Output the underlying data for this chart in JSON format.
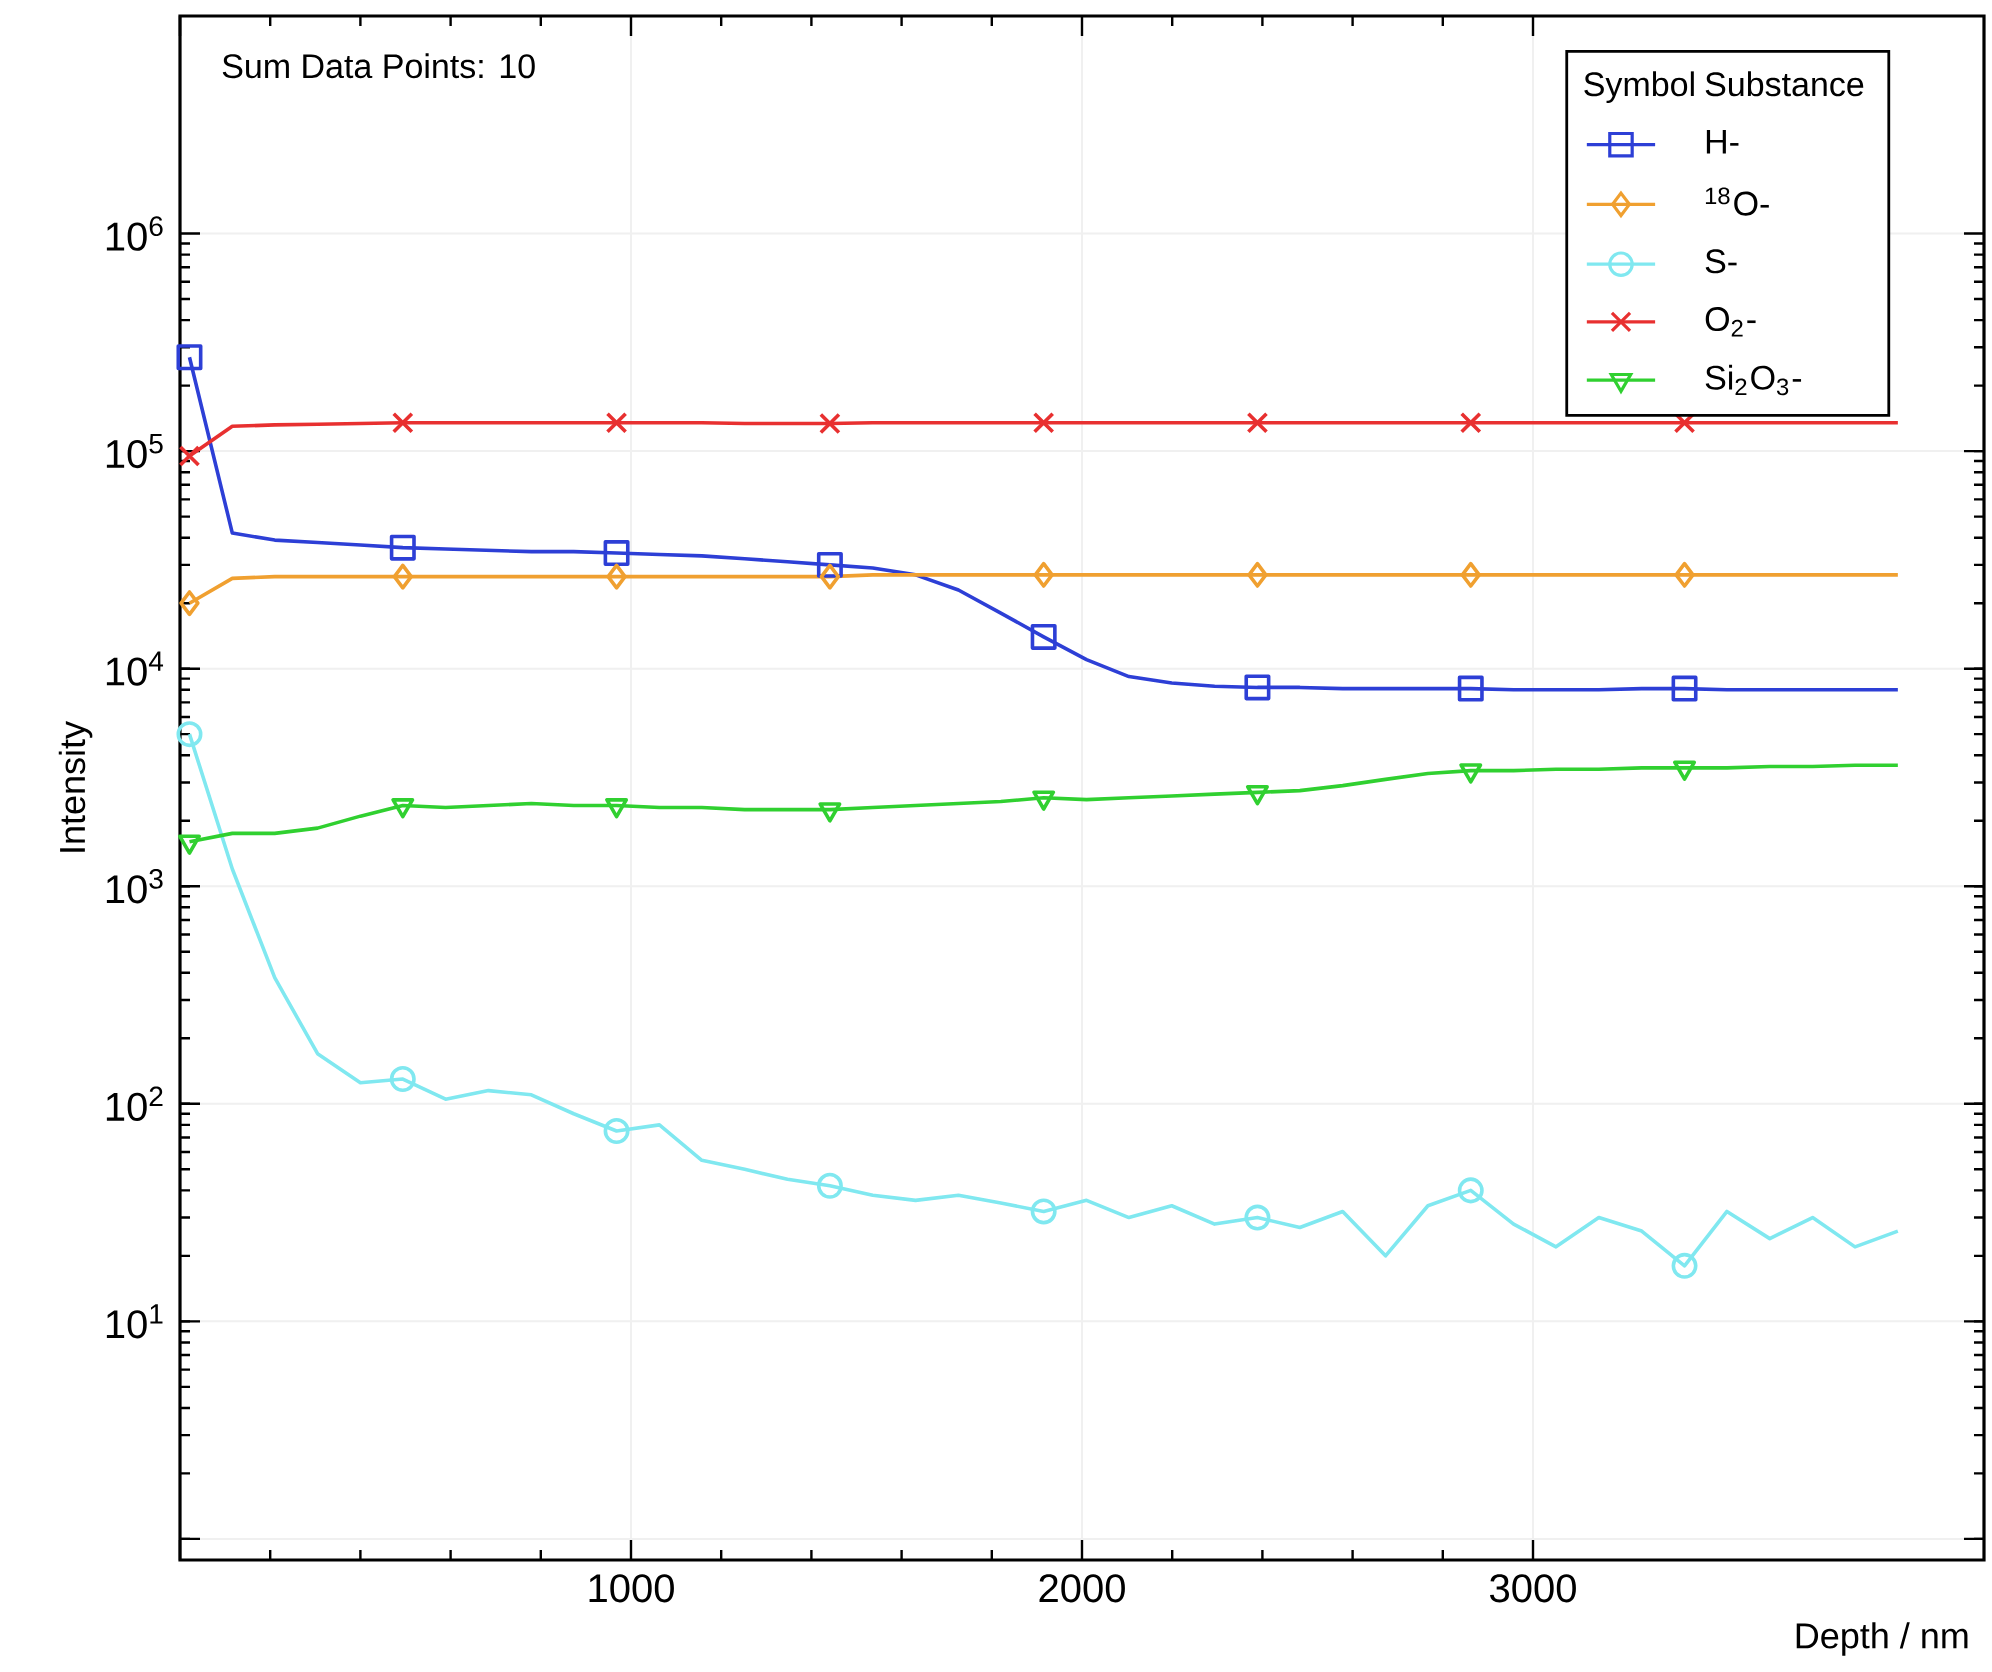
{
  "chart_data": {
    "type": "line",
    "xlabel": "Depth / nm",
    "ylabel": "Intensity",
    "legend_title": "Symbol",
    "annotations": [
      "Sum Data Points: 10",
      "Substance"
    ],
    "x": [
      21,
      116,
      210,
      305,
      400,
      494,
      589,
      684,
      779,
      873,
      968,
      1063,
      1157,
      1252,
      1347,
      1441,
      1536,
      1631,
      1726,
      1820,
      1915,
      2010,
      2104,
      2199,
      2294,
      2389,
      2483,
      2578,
      2673,
      2767,
      2862,
      2957,
      3051,
      3146,
      3241,
      3336,
      3430,
      3525,
      3620,
      3714,
      3809
    ],
    "series": [
      {
        "name": "H-",
        "color": "#2d3fd6",
        "values": [
          270000,
          42000,
          39000,
          38000,
          37000,
          36000,
          35500,
          35000,
          34500,
          34500,
          34000,
          33500,
          33000,
          32000,
          31000,
          30000,
          29000,
          27000,
          23000,
          18000,
          14000,
          11000,
          9200,
          8600,
          8300,
          8200,
          8200,
          8100,
          8100,
          8100,
          8100,
          8000,
          8000,
          8000,
          8100,
          8100,
          8000,
          8000,
          8000,
          8000,
          8000
        ]
      },
      {
        "name": "$^{18}$O-",
        "color": "#f0a030",
        "values": [
          20000,
          26000,
          26500,
          26500,
          26500,
          26500,
          26500,
          26500,
          26500,
          26500,
          26500,
          26500,
          26500,
          26500,
          26500,
          26500,
          27000,
          27000,
          27000,
          27000,
          27000,
          27000,
          27000,
          27000,
          27000,
          27000,
          27000,
          27000,
          27000,
          27000,
          27000,
          27000,
          27000,
          27000,
          27000,
          27000,
          27000,
          27000,
          27000,
          27000,
          27000
        ]
      },
      {
        "name": "S-",
        "color": "#80e8f0",
        "values": [
          5000,
          1200,
          380,
          170,
          125,
          130,
          105,
          115,
          110,
          90,
          75,
          80,
          55,
          50,
          45,
          42,
          38,
          36,
          38,
          35,
          32,
          36,
          30,
          34,
          28,
          30,
          27,
          32,
          20,
          34,
          40,
          28,
          22,
          30,
          26,
          18,
          32,
          24,
          30,
          22,
          26
        ]
      },
      {
        "name": "O$_{2}$-",
        "color": "#e83030",
        "values": [
          95000,
          130000,
          132000,
          133000,
          134000,
          135000,
          135000,
          135000,
          135000,
          135000,
          135000,
          135000,
          135000,
          134000,
          134000,
          134000,
          135000,
          135000,
          135000,
          135000,
          135000,
          135000,
          135000,
          135000,
          135000,
          135000,
          135000,
          135000,
          135000,
          135000,
          135000,
          135000,
          135000,
          135000,
          135000,
          135000,
          135000,
          135000,
          135000,
          135000,
          135000
        ]
      },
      {
        "name": "Si$_{2}$O$_{3}$-",
        "color": "#30d030",
        "values": [
          1600,
          1750,
          1750,
          1850,
          2100,
          2350,
          2300,
          2350,
          2400,
          2350,
          2350,
          2300,
          2300,
          2250,
          2250,
          2250,
          2300,
          2350,
          2400,
          2450,
          2550,
          2500,
          2550,
          2600,
          2650,
          2700,
          2750,
          2900,
          3100,
          3300,
          3400,
          3400,
          3450,
          3450,
          3500,
          3500,
          3500,
          3550,
          3550,
          3600,
          3600
        ]
      },
      {
        "type": "scatter",
        "color": "#2d3fd6",
        "marker": "square",
        "x": [
          21,
          494,
          968,
          1441,
          1915,
          2389,
          2862,
          3336
        ],
        "values": [
          270000,
          36000,
          34000,
          30000,
          14000,
          8200,
          8100,
          8100
        ]
      },
      {
        "type": "scatter",
        "color": "#f0a030",
        "marker": "diamond",
        "x": [
          21,
          494,
          968,
          1441,
          1915,
          2389,
          2862,
          3336
        ],
        "values": [
          20000,
          26500,
          26500,
          26500,
          27000,
          27000,
          27000,
          27000
        ]
      },
      {
        "type": "scatter",
        "color": "#80e8f0",
        "marker": "circle",
        "x": [
          21,
          494,
          968,
          1441,
          1915,
          2389,
          2862,
          3336
        ],
        "values": [
          5000,
          130,
          75,
          42,
          32,
          30,
          40,
          18
        ]
      },
      {
        "type": "scatter",
        "color": "#e83030",
        "marker": "cross",
        "x": [
          21,
          494,
          968,
          1441,
          1915,
          2389,
          2862,
          3336
        ],
        "values": [
          95000,
          135000,
          135000,
          134000,
          135000,
          135000,
          135000,
          135000
        ]
      },
      {
        "type": "scatter",
        "color": "#30d030",
        "marker": "triangle",
        "x": [
          21,
          494,
          968,
          1441,
          1915,
          2389,
          2862,
          3336
        ],
        "values": [
          1600,
          2350,
          2350,
          2250,
          2550,
          2700,
          3400,
          3500
        ]
      }
    ],
    "xlim": [
      0,
      4000
    ],
    "ylim": [
      0.8,
      10000000
    ],
    "xticks": [
      {
        "value": 0,
        "label": null
      },
      1000,
      2000,
      3000
    ],
    "yticks": [
      {
        "value": 1,
        "label": null
      },
      {
        "value": 10,
        "label": "10$^{1}$"
      },
      {
        "value": 100,
        "label": "10$^{2}$"
      },
      {
        "value": 1000,
        "label": "10$^{3}$"
      },
      {
        "value": 10000,
        "label": "10$^{4}$"
      },
      {
        "value": 100000,
        "label": "10$^{5}$"
      },
      {
        "value": 1000000,
        "label": "10$^{6}$"
      }
    ],
    "log": "y",
    "grid": true,
    "legend": "top right"
  }
}
